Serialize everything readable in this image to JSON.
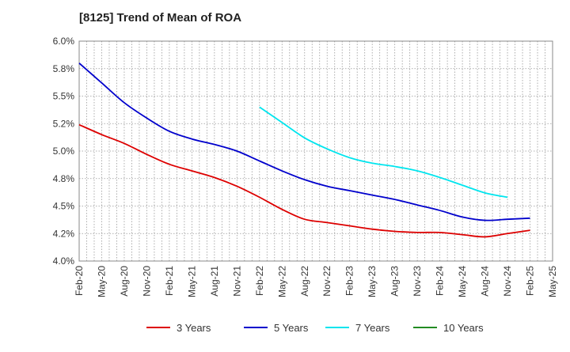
{
  "chart_data": {
    "type": "line",
    "title": "[8125]  Trend of Mean of ROA",
    "xlabel": "",
    "ylabel": "",
    "ylim": [
      4.0,
      6.0
    ],
    "yticks": [
      4.0,
      4.25,
      4.5,
      4.75,
      5.0,
      5.25,
      5.5,
      5.75,
      6.0
    ],
    "ytick_labels": [
      "4.0%",
      "4.2%",
      "4.5%",
      "4.8%",
      "5.0%",
      "5.2%",
      "5.5%",
      "5.8%",
      "6.0%"
    ],
    "x_ticks": [
      "Feb-20",
      "May-20",
      "Aug-20",
      "Nov-20",
      "Feb-21",
      "May-21",
      "Aug-21",
      "Nov-21",
      "Feb-22",
      "May-22",
      "Aug-22",
      "Nov-22",
      "Feb-23",
      "May-23",
      "Aug-23",
      "Nov-23",
      "Feb-24",
      "May-24",
      "Aug-24",
      "Nov-24",
      "Feb-25",
      "May-25"
    ],
    "x_range_months": [
      0,
      63
    ],
    "grid": true,
    "legend_position": "bottom",
    "series": [
      {
        "name": "3 Years",
        "color": "#dd0000",
        "start_month": 0,
        "values": [
          5.24,
          5.15,
          5.07,
          4.97,
          4.88,
          4.82,
          4.76,
          4.68,
          4.58,
          4.47,
          4.38,
          4.35,
          4.32,
          4.29,
          4.27,
          4.26,
          4.26,
          4.24,
          4.22,
          4.25,
          4.28
        ]
      },
      {
        "name": "5 Years",
        "color": "#0000cc",
        "start_month": 0,
        "values": [
          5.8,
          5.62,
          5.44,
          5.3,
          5.18,
          5.11,
          5.06,
          5.0,
          4.91,
          4.82,
          4.74,
          4.68,
          4.64,
          4.6,
          4.56,
          4.51,
          4.46,
          4.4,
          4.37,
          4.38,
          4.39
        ]
      },
      {
        "name": "7 Years",
        "color": "#00e5ee",
        "start_month": 24,
        "values": [
          5.4,
          5.26,
          5.12,
          5.02,
          4.94,
          4.89,
          4.86,
          4.82,
          4.76,
          4.69,
          4.62,
          4.58
        ]
      },
      {
        "name": "10 Years",
        "color": "#228b22",
        "start_month": 0,
        "values": []
      }
    ]
  }
}
